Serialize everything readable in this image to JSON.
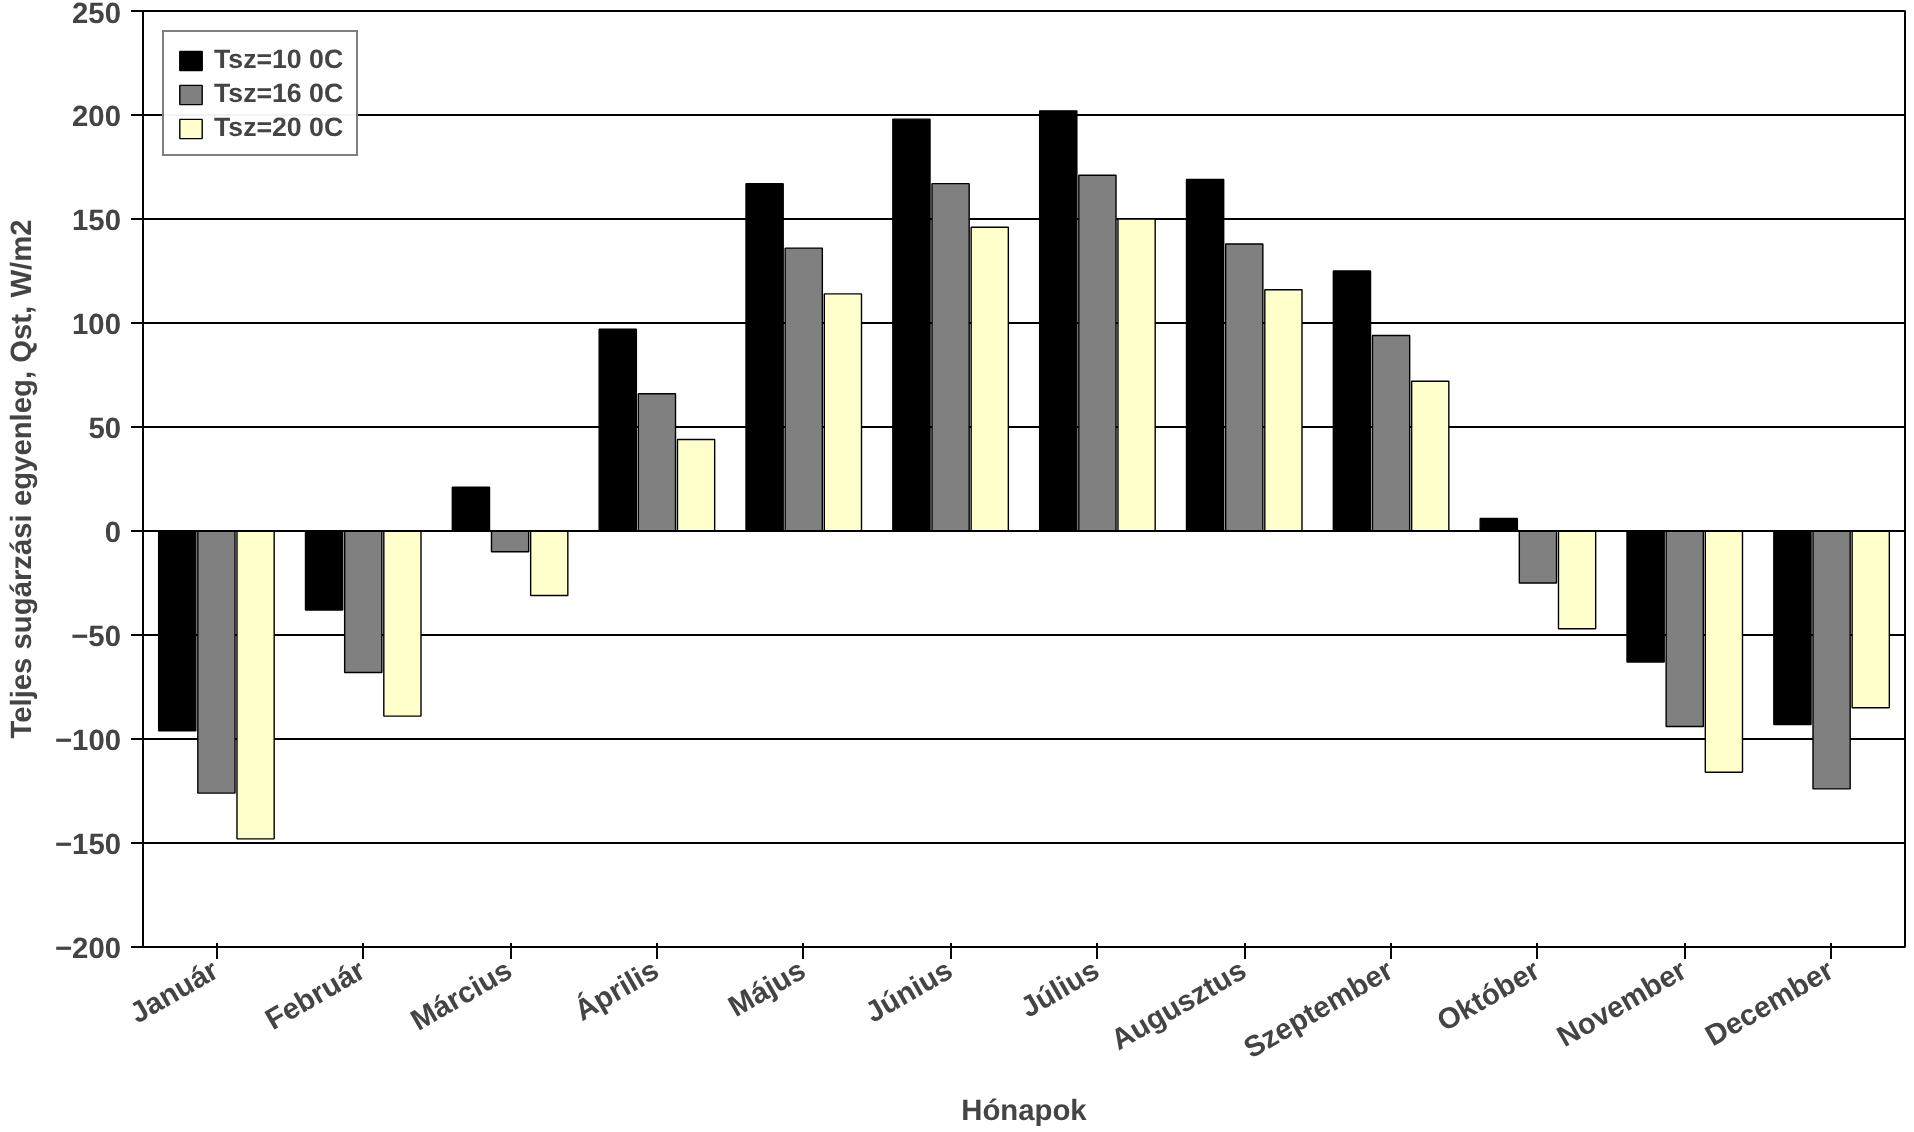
{
  "chart_data": {
    "type": "bar",
    "xlabel": "Hónapok",
    "ylabel": "Teljes sugárzási egyenleg, Qst, W/m2",
    "categories": [
      "Január",
      "Február",
      "Március",
      "Április",
      "Május",
      "Június",
      "Július",
      "Augusztus",
      "Szeptember",
      "Október",
      "November",
      "December"
    ],
    "series": [
      {
        "name": "Tsz=10 0C",
        "color": "#000000",
        "values": [
          -96,
          -38,
          21,
          97,
          167,
          198,
          202,
          169,
          125,
          6,
          -63,
          -93
        ]
      },
      {
        "name": "Tsz=16 0C",
        "color": "#808080",
        "values": [
          -126,
          -68,
          -10,
          66,
          136,
          167,
          171,
          138,
          94,
          -25,
          -94,
          -124
        ]
      },
      {
        "name": "Tsz=20 0C",
        "color": "#ffffcc",
        "values": [
          -148,
          -89,
          -31,
          44,
          114,
          146,
          150,
          116,
          72,
          -47,
          -116,
          -85
        ]
      }
    ],
    "ylim": [
      -200,
      250
    ],
    "yticks": [
      -200,
      -150,
      -100,
      -50,
      0,
      50,
      100,
      150,
      200,
      250
    ],
    "grid": "y",
    "legend": "top left"
  }
}
